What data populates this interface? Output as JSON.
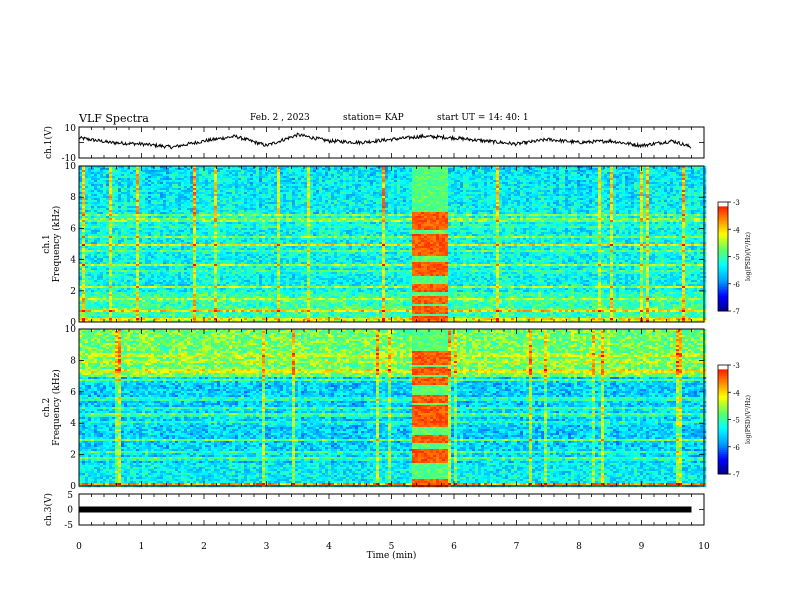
{
  "header": {
    "title": "VLF Spectra",
    "date": "Feb. 2 , 2023",
    "station": "station= KAP",
    "start": "start UT = 14: 40: 1"
  },
  "colors": {
    "frame": "#000000",
    "waveform": "#000000",
    "colormap": [
      "#000080",
      "#0000ff",
      "#00a0ff",
      "#00ffff",
      "#60ff60",
      "#ffff00",
      "#ff8000",
      "#ff0000",
      "#ffffff"
    ]
  },
  "chart_data": [
    {
      "type": "line",
      "name": "ch1-waveform",
      "ylabel": "ch.1(V)",
      "ylim": [
        -10,
        10
      ],
      "ytick_labels": [
        "10",
        "-10"
      ],
      "x": [
        0,
        0.5,
        1,
        1.5,
        2,
        2.5,
        3,
        3.5,
        4,
        4.5,
        5,
        5.5,
        6,
        6.5,
        7,
        7.5,
        8,
        8.5,
        9,
        9.5,
        9.8
      ],
      "y": [
        3,
        0,
        -1,
        -3,
        1,
        4,
        -2,
        5,
        1,
        0,
        2,
        4,
        3,
        1,
        -1,
        2,
        0,
        1,
        -2,
        1,
        -3
      ]
    },
    {
      "type": "heatmap",
      "name": "ch1-spectrogram",
      "ylabel": "ch.1\nFrequency (kHz)",
      "ylim": [
        0,
        10
      ],
      "yticks": [
        0,
        2,
        4,
        6,
        8,
        10
      ],
      "ytick_labels": [
        "0",
        "2",
        "4",
        "6",
        "8",
        "10"
      ],
      "colorbar": {
        "label": "log(PSD)(V²/Hz)",
        "range": [
          -7,
          -3
        ],
        "ticks": [
          "-3",
          "-4",
          "-5",
          "-6",
          "-7"
        ]
      },
      "burst": {
        "t_start": 5.3,
        "t_end": 5.9
      }
    },
    {
      "type": "heatmap",
      "name": "ch2-spectrogram",
      "ylabel": "ch.2\nFrequency (kHz)",
      "ylim": [
        0,
        10
      ],
      "yticks": [
        0,
        2,
        4,
        6,
        8,
        10
      ],
      "ytick_labels": [
        "0",
        "2",
        "4",
        "6",
        "8",
        "10"
      ],
      "colorbar": {
        "label": "log(PSD)(V²/Hz)",
        "range": [
          -7,
          -3
        ],
        "ticks": [
          "-3",
          "-4",
          "-5",
          "-6",
          "-7"
        ]
      },
      "burst": {
        "t_start": 5.3,
        "t_end": 5.9
      }
    },
    {
      "type": "line",
      "name": "ch3-signal",
      "ylabel": "ch.3(V)",
      "ylim": [
        -5,
        5
      ],
      "ytick_labels": [
        "5",
        "0",
        "-5"
      ],
      "x": [
        0,
        9.8
      ],
      "y": [
        0,
        0
      ]
    }
  ],
  "xaxis": {
    "xlabel": "Time (min)",
    "xlim": [
      0,
      10
    ],
    "ticks": [
      0,
      1,
      2,
      3,
      4,
      5,
      6,
      7,
      8,
      9,
      10
    ],
    "tick_labels": [
      "0",
      "1",
      "2",
      "3",
      "4",
      "5",
      "6",
      "7",
      "8",
      "9",
      "10"
    ]
  }
}
